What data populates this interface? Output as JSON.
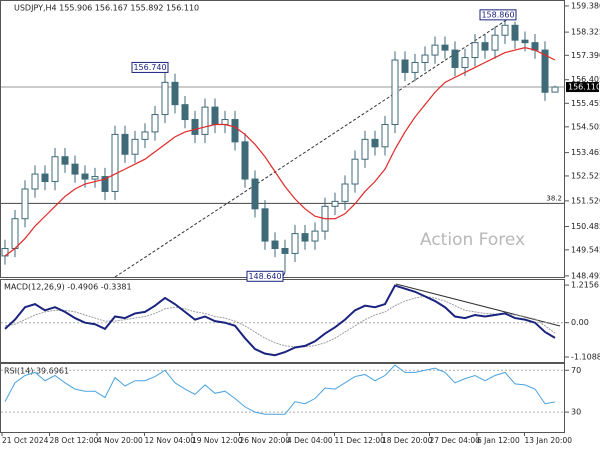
{
  "chart_data": {
    "type": "candlestick",
    "header": "USDJPY,H4 155.906 156.167 155.892 156.110",
    "watermark": "Action Forex",
    "color": "#3f6a78",
    "open": [
      149.3,
      149.6,
      150.8,
      152.0,
      152.6,
      152.3,
      153.3,
      153.0,
      152.6,
      152.4,
      152.5,
      151.9,
      154.2,
      153.4,
      154.0,
      154.3,
      155.0,
      156.3,
      155.4,
      154.8,
      154.2,
      155.3,
      154.6,
      154.8,
      153.9,
      152.4,
      151.2,
      149.9,
      149.6,
      149.4,
      150.2,
      149.9,
      150.3,
      151.3,
      151.5,
      152.2,
      153.2,
      154.0,
      153.7,
      154.6,
      157.2,
      156.7,
      157.1,
      157.4,
      157.8,
      157.6,
      156.9,
      157.3,
      157.9,
      157.6,
      158.2,
      158.6,
      158.0,
      157.9,
      157.6,
      155.906
    ],
    "high": [
      149.95,
      151.15,
      152.35,
      152.95,
      152.95,
      153.65,
      153.65,
      153.35,
      152.95,
      152.85,
      152.85,
      154.55,
      154.55,
      154.35,
      154.65,
      155.35,
      156.74,
      156.65,
      155.75,
      155.15,
      155.65,
      155.65,
      155.15,
      155.15,
      154.25,
      152.75,
      151.55,
      150.25,
      149.95,
      150.55,
      150.55,
      150.65,
      151.65,
      151.85,
      152.55,
      153.55,
      154.35,
      154.35,
      154.95,
      157.55,
      157.55,
      157.45,
      157.75,
      158.15,
      158.15,
      157.95,
      157.65,
      158.25,
      158.25,
      158.55,
      158.86,
      158.75,
      158.35,
      158.25,
      157.95,
      156.167
    ],
    "low": [
      148.95,
      149.25,
      150.45,
      151.65,
      151.95,
      151.95,
      152.65,
      152.25,
      152.05,
      152.05,
      151.55,
      151.55,
      153.05,
      153.05,
      153.65,
      153.95,
      154.65,
      155.05,
      154.45,
      153.85,
      153.85,
      154.25,
      154.25,
      153.55,
      152.05,
      150.85,
      149.55,
      149.25,
      148.64,
      149.05,
      149.55,
      149.55,
      149.95,
      150.95,
      151.15,
      151.85,
      152.85,
      153.35,
      153.35,
      154.25,
      156.35,
      156.35,
      156.75,
      157.05,
      157.25,
      156.55,
      156.55,
      156.95,
      157.25,
      157.25,
      157.85,
      157.65,
      157.55,
      157.25,
      155.55,
      155.892
    ],
    "close": [
      149.6,
      150.8,
      152.0,
      152.6,
      152.3,
      153.3,
      153.0,
      152.6,
      152.4,
      152.5,
      151.9,
      154.2,
      153.4,
      154.0,
      154.3,
      155.0,
      156.3,
      155.4,
      154.8,
      154.2,
      155.3,
      154.6,
      154.8,
      153.9,
      152.4,
      151.2,
      149.9,
      149.6,
      149.4,
      150.2,
      149.9,
      150.3,
      151.3,
      151.5,
      152.2,
      153.2,
      154.0,
      153.7,
      154.6,
      157.2,
      156.7,
      157.1,
      157.4,
      157.8,
      157.6,
      156.9,
      157.3,
      157.9,
      157.6,
      158.2,
      158.6,
      158.0,
      157.9,
      157.6,
      155.9,
      156.11
    ],
    "ma": {
      "color": "#e02828",
      "values": [
        149.3,
        149.6,
        150.0,
        150.5,
        150.9,
        151.3,
        151.7,
        152.0,
        152.2,
        152.3,
        152.4,
        152.6,
        152.8,
        153.0,
        153.2,
        153.5,
        153.8,
        154.1,
        154.3,
        154.4,
        154.5,
        154.6,
        154.6,
        154.5,
        154.2,
        153.8,
        153.3,
        152.7,
        152.1,
        151.6,
        151.2,
        150.9,
        150.8,
        150.8,
        151.0,
        151.4,
        151.9,
        152.3,
        152.8,
        153.6,
        154.3,
        154.9,
        155.4,
        155.9,
        156.3,
        156.5,
        156.7,
        156.9,
        157.1,
        157.3,
        157.5,
        157.6,
        157.7,
        157.6,
        157.4,
        157.2
      ]
    },
    "ylim": [
      148.45,
      159.58
    ],
    "yticks": [
      {
        "value": 159.38,
        "label": "159.380"
      },
      {
        "value": 158.325,
        "label": "158.325"
      },
      {
        "value": 157.39,
        "label": "157.390"
      },
      {
        "value": 156.405,
        "label": "156.405"
      },
      {
        "value": 155.455,
        "label": "155.455"
      },
      {
        "value": 154.505,
        "label": "154.505"
      },
      {
        "value": 153.465,
        "label": "153.465"
      },
      {
        "value": 152.525,
        "label": "152.525"
      },
      {
        "value": 151.52,
        "label": "151.520"
      },
      {
        "value": 150.485,
        "label": "150.485"
      },
      {
        "value": 149.545,
        "label": "149.545"
      },
      {
        "value": 148.495,
        "label": "148.495"
      }
    ],
    "current": {
      "value": 156.11,
      "label": "156.110"
    },
    "fib_level": {
      "value": 151.42,
      "label": "38.2"
    },
    "annotations": [
      {
        "value": 156.74,
        "label": "156.740"
      },
      {
        "value": 148.64,
        "label": "148.640"
      },
      {
        "value": 158.86,
        "label": "158.860"
      }
    ],
    "xtick_labels": [
      "21 Oct 2024",
      "28 Oct 12:00",
      "4 Nov 20:00",
      "12 Nov 04:00",
      "19 Nov 12:00",
      "26 Nov 20:00",
      "4 Dec 04:00",
      "11 Dec 12:00",
      "18 Dec 20:00",
      "27 Dec 04:00",
      "6 Jan 12:00",
      "13 Jan 20:00"
    ],
    "macd": {
      "header": "MACD(12,26,9) -0.4906 -0.3381",
      "color": "#1a237e",
      "signal_color": "#9e9e9e",
      "values": [
        -0.2,
        0.1,
        0.5,
        0.6,
        0.4,
        0.5,
        0.35,
        0.15,
        0.0,
        -0.05,
        -0.2,
        0.2,
        0.15,
        0.3,
        0.35,
        0.55,
        0.8,
        0.6,
        0.35,
        0.1,
        0.2,
        0.05,
        0.0,
        -0.1,
        -0.5,
        -0.85,
        -1.0,
        -1.05,
        -0.95,
        -0.8,
        -0.75,
        -0.6,
        -0.35,
        -0.15,
        0.1,
        0.4,
        0.55,
        0.5,
        0.6,
        1.2,
        1.1,
        1.0,
        0.85,
        0.7,
        0.5,
        0.2,
        0.15,
        0.25,
        0.2,
        0.25,
        0.3,
        0.15,
        0.1,
        0.0,
        -0.3,
        -0.4906
      ],
      "signal": [
        -0.1,
        -0.05,
        0.1,
        0.25,
        0.35,
        0.4,
        0.4,
        0.35,
        0.25,
        0.15,
        0.05,
        0.05,
        0.1,
        0.15,
        0.2,
        0.3,
        0.45,
        0.5,
        0.45,
        0.35,
        0.3,
        0.2,
        0.15,
        0.05,
        -0.1,
        -0.3,
        -0.5,
        -0.65,
        -0.75,
        -0.78,
        -0.78,
        -0.74,
        -0.65,
        -0.5,
        -0.3,
        -0.1,
        0.1,
        0.25,
        0.35,
        0.55,
        0.7,
        0.8,
        0.85,
        0.8,
        0.7,
        0.55,
        0.4,
        0.35,
        0.3,
        0.28,
        0.28,
        0.25,
        0.2,
        0.12,
        -0.1,
        -0.3381
      ],
      "ylim": [
        -1.27,
        1.38
      ],
      "yticks": [
        1.2156,
        {
          "value": 0,
          "label": "0.00"
        },
        -1.1088
      ]
    },
    "rsi": {
      "header": "RSI(14) 39.6961",
      "color": "#4aa3df",
      "values": [
        40,
        58,
        65,
        68,
        60,
        65,
        58,
        52,
        50,
        50,
        44,
        63,
        55,
        60,
        60,
        64,
        70,
        58,
        52,
        47,
        56,
        48,
        50,
        43,
        35,
        30,
        28,
        28,
        28,
        40,
        38,
        43,
        53,
        52,
        58,
        64,
        66,
        60,
        65,
        75,
        68,
        68,
        70,
        72,
        68,
        58,
        62,
        65,
        60,
        65,
        68,
        57,
        56,
        52,
        38,
        39.6961
      ],
      "ylim": [
        11,
        76
      ],
      "yticks": [
        70,
        30
      ]
    }
  }
}
